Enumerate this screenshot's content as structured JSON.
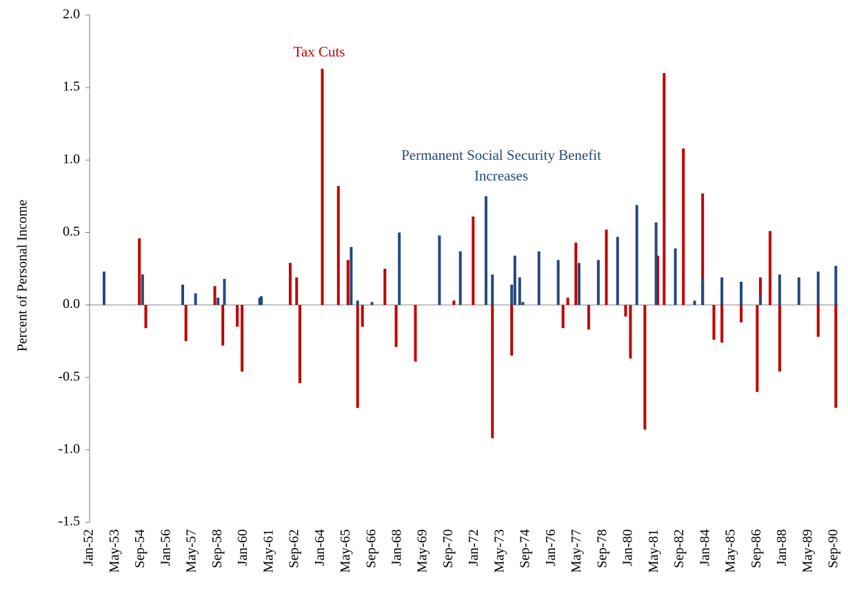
{
  "chart_data": {
    "type": "bar",
    "y_label": "Percent of Personal Income",
    "xlim": [
      "Jan-52",
      "Dec-90"
    ],
    "xticks": [
      "Jan-52",
      "May-53",
      "Sep-54",
      "Jan-56",
      "May-57",
      "Sep-58",
      "Jan-60",
      "May-61",
      "Sep-62",
      "Jan-64",
      "May-65",
      "Sep-66",
      "Jan-68",
      "May-69",
      "Sep-70",
      "Jan-72",
      "May-73",
      "Sep-74",
      "Jan-76",
      "May-77",
      "Sep-78",
      "Jan-80",
      "May-81",
      "Sep-82",
      "Jan-84",
      "May-85",
      "Sep-86",
      "Jan-88",
      "May-89",
      "Sep-90"
    ],
    "ylim": [
      -1.5,
      2.0
    ],
    "yticks": [
      {
        "value": -1.5,
        "label": "-1.5"
      },
      {
        "value": -1.0,
        "label": "-1.0"
      },
      {
        "value": -0.5,
        "label": "-0.5"
      },
      {
        "value": 0,
        "label": "0.0"
      },
      {
        "value": 0.5,
        "label": "0.5"
      },
      {
        "value": 1.0,
        "label": "1.0"
      },
      {
        "value": 1.5,
        "label": "1.5"
      },
      {
        "value": 2.0,
        "label": "2.0"
      }
    ],
    "series": [
      {
        "name": "Tax Cuts",
        "color": "#c00000",
        "x": [
          "Aug-54",
          "Dec-54",
          "Jan-57",
          "Jul-58",
          "Dec-58",
          "Sep-59",
          "Dec-59",
          "Jun-62",
          "Oct-62",
          "Dec-62",
          "Feb-64",
          "Dec-64",
          "Jun-65",
          "Dec-65",
          "Mar-66",
          "May-67",
          "Dec-67",
          "Dec-68",
          "Dec-70",
          "Dec-71",
          "Dec-72",
          "Dec-73",
          "Aug-76",
          "Nov-76",
          "Apr-77",
          "Dec-77",
          "Nov-78",
          "Nov-79",
          "Feb-80",
          "Nov-80",
          "Jul-81",
          "Nov-81",
          "Nov-82",
          "Nov-83",
          "Jun-84",
          "Nov-84",
          "Nov-85",
          "Sep-86",
          "Nov-86",
          "May-87",
          "Nov-87",
          "Nov-89",
          "Oct-90"
        ],
        "values": [
          0.46,
          -0.16,
          -0.25,
          0.13,
          -0.28,
          -0.15,
          -0.46,
          0.29,
          0.19,
          -0.54,
          1.63,
          0.82,
          0.31,
          -0.71,
          -0.15,
          0.25,
          -0.29,
          -0.39,
          0.03,
          0.61,
          -0.92,
          -0.35,
          -0.16,
          0.05,
          0.43,
          -0.17,
          0.52,
          -0.08,
          -0.37,
          -0.86,
          0.34,
          1.6,
          1.08,
          0.77,
          -0.24,
          -0.26,
          -0.12,
          -0.6,
          0.19,
          0.51,
          -0.46,
          -0.22,
          -0.71
        ]
      },
      {
        "name": "Permanent Social Security Benefit Increases",
        "color": "#24497e",
        "x": [
          "Oct-52",
          "Oct-54",
          "Nov-56",
          "Jul-57",
          "Sep-58",
          "Jan-59",
          "Nov-60",
          "Dec-60",
          "Aug-65",
          "Dec-65",
          "Sep-66",
          "Feb-68",
          "Mar-70",
          "Apr-71",
          "Aug-72",
          "Dec-72",
          "Dec-73",
          "Feb-74",
          "May-74",
          "Jul-74",
          "May-75",
          "May-76",
          "Jun-77",
          "Jun-78",
          "Jun-79",
          "Jun-80",
          "Jun-81",
          "Jun-82",
          "Jun-83",
          "Nov-83",
          "Nov-84",
          "Nov-85",
          "Nov-86",
          "Nov-87",
          "Nov-88",
          "Nov-89",
          "Oct-90"
        ],
        "values": [
          0.23,
          0.21,
          0.14,
          0.08,
          0.05,
          0.18,
          0.05,
          0.06,
          0.4,
          0.03,
          0.02,
          0.5,
          0.48,
          0.37,
          0.75,
          0.21,
          0.14,
          0.34,
          0.19,
          0.02,
          0.37,
          0.31,
          0.29,
          0.31,
          0.47,
          0.69,
          0.57,
          0.39,
          0.03,
          0.19,
          0.19,
          0.16,
          0.06,
          0.21,
          0.19,
          0.23,
          0.27
        ]
      }
    ]
  }
}
